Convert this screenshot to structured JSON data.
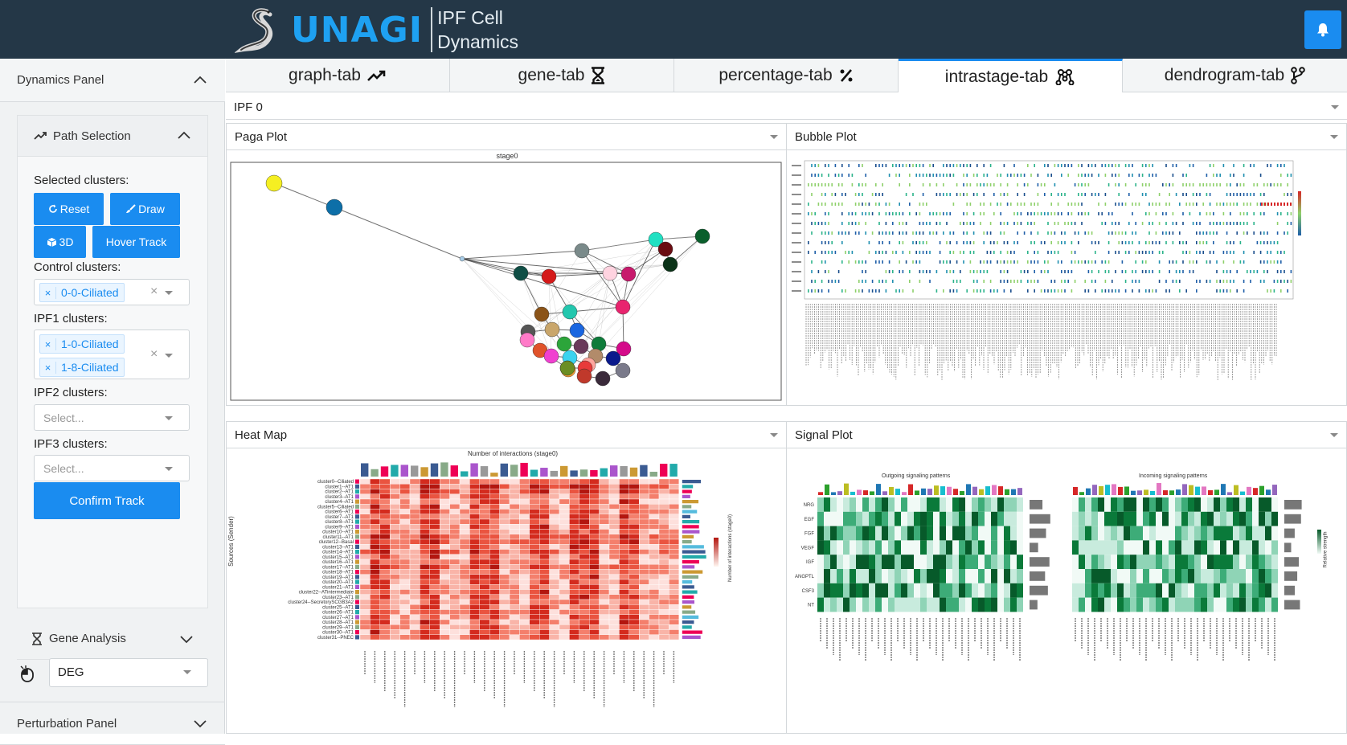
{
  "header": {
    "logo_text": "UNAGI",
    "subtitle_line1": "IPF Cell",
    "subtitle_line2": "Dynamics",
    "bell_icon": "bell-icon"
  },
  "sidebar": {
    "dynamics_panel_label": "Dynamics Panel",
    "path_selection_label": "Path Selection",
    "selected_clusters_label": "Selected clusters:",
    "reset_label": "Reset",
    "draw_label": "Draw",
    "three_d_label": "3D",
    "hover_track_label": "Hover Track",
    "control_clusters_label": "Control clusters:",
    "control_tags": [
      "0-0-Ciliated"
    ],
    "ipf1_clusters_label": "IPF1 clusters:",
    "ipf1_tags": [
      "1-0-Ciliated",
      "1-8-Ciliated"
    ],
    "ipf2_clusters_label": "IPF2 clusters:",
    "ipf2_placeholder": "Select...",
    "ipf3_clusters_label": "IPF3 clusters:",
    "ipf3_placeholder": "Select...",
    "confirm_track_label": "Confirm Track",
    "gene_analysis_label": "Gene Analysis",
    "deg_value": "DEG",
    "perturbation_panel_label": "Perturbation Panel"
  },
  "tabs": [
    {
      "label": "graph-tab",
      "icon": "trend-icon"
    },
    {
      "label": "gene-tab",
      "icon": "hourglass-icon"
    },
    {
      "label": "percentage-tab",
      "icon": "percent-icon"
    },
    {
      "label": "intrastage-tab",
      "icon": "graph-nodes-icon",
      "active": true
    },
    {
      "label": "dendrogram-tab",
      "icon": "branch-icon"
    }
  ],
  "stage_select_value": "IPF 0",
  "panels": {
    "paga": {
      "title": "Paga Plot",
      "plot_title": "stage0"
    },
    "bubble": {
      "title": "Bubble Plot"
    },
    "heatmap": {
      "title": "Heat Map",
      "plot_title": "Number of interactions (stage0)",
      "y_axis_label": "Sources (Sender)",
      "legend_label": "Number of interactions (stage0)"
    },
    "signal": {
      "title": "Signal Plot",
      "outgoing_title": "Outgoing signaling patterns",
      "incoming_title": "Incoming signaling patterns",
      "rows": [
        "NRG",
        "EGF",
        "FGF",
        "VEGF",
        "IGF",
        "ANGPTL",
        "CSF3",
        "NT"
      ],
      "legend_label": "Relative strength"
    }
  },
  "heatmap_rows": [
    "cluster0--Ciliated",
    "cluster1--AT1",
    "cluster2--AT1",
    "cluster3--AT1",
    "cluster4--AT1",
    "cluster5--Ciliated",
    "cluster6--AT1",
    "cluster7--AT1",
    "cluster8--AT1",
    "cluster9--AT1",
    "cluster10--AT1",
    "cluster11--AT1",
    "cluster12--Basal",
    "cluster13--AT1",
    "cluster14--AT1",
    "cluster15--AT1",
    "cluster16--AT1",
    "cluster17--AT1",
    "cluster18--AT1",
    "cluster19--AT1",
    "cluster20--AT1",
    "cluster21--AT1",
    "cluster22--ATintermediate",
    "cluster23--AT1",
    "cluster24--SecretorySCGB3A2",
    "cluster25--AT1",
    "cluster26--AT1",
    "cluster27--AT1",
    "cluster28--AT1",
    "cluster29--AT1",
    "cluster30--AT1",
    "cluster31--PNEC"
  ],
  "colors": {
    "header_bg": "#243747",
    "accent": "#1a8cf0",
    "logo": "#1ea1f2"
  }
}
